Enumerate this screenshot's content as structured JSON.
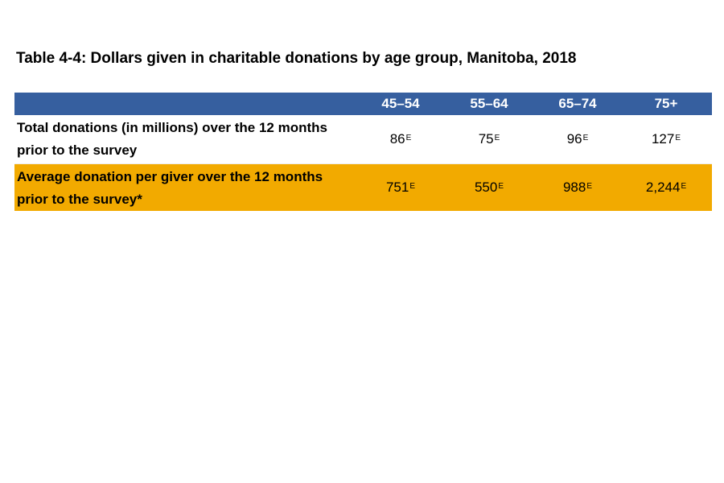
{
  "title": "Table 4-4: Dollars given in charitable donations by age group, Manitoba, 2018",
  "columns": [
    "45–54",
    "55–64",
    "65–74",
    "75+"
  ],
  "rows": [
    {
      "label": "Total donations (in millions) over the 12 months prior to the survey",
      "values": [
        "86",
        "75",
        "96",
        "127"
      ],
      "flags": [
        "E",
        "E",
        "E",
        "E"
      ]
    },
    {
      "label": "Average donation per giver over the 12 months prior to the survey*",
      "values": [
        "751",
        "550",
        "988",
        "2,244"
      ],
      "flags": [
        "E",
        "E",
        "E",
        "E"
      ]
    }
  ],
  "colors": {
    "header": "#365f9f",
    "highlight_row": "#f2aa00"
  }
}
